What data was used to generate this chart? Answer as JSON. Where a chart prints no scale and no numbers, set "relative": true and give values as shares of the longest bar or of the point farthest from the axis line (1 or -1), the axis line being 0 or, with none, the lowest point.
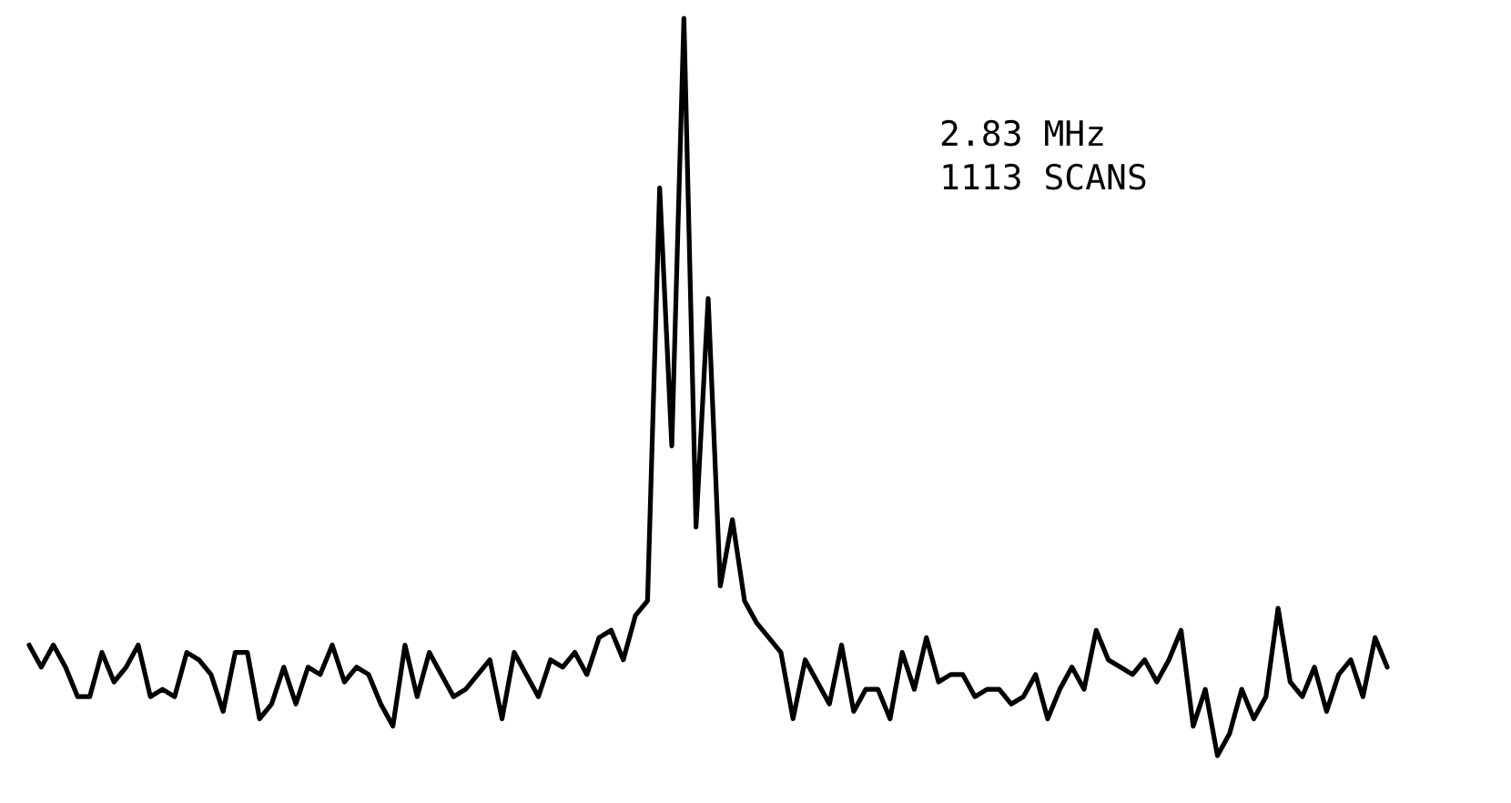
{
  "chart_data": {
    "type": "line",
    "relative": true,
    "tick_labels": false,
    "annotations": [
      "2.83 MHz",
      "1113 SCANS"
    ],
    "categories": [
      null,
      null,
      null,
      null,
      null,
      null,
      null,
      null,
      null,
      null,
      null,
      null,
      null,
      null,
      null,
      null,
      null,
      null,
      null,
      null,
      null,
      null,
      null,
      null,
      null,
      null,
      null,
      null,
      null,
      null,
      null,
      null,
      null,
      null,
      null,
      null,
      null,
      null,
      null,
      null,
      null,
      null,
      null,
      null,
      null,
      null,
      null,
      null,
      null,
      null,
      null,
      null,
      null,
      null,
      null,
      null,
      null,
      null,
      null,
      null,
      null,
      null,
      null,
      null,
      null,
      null,
      null,
      null,
      null,
      null,
      null,
      null,
      null,
      null,
      null,
      null,
      null,
      null,
      null,
      null,
      null,
      null,
      null,
      null,
      null,
      null,
      null,
      null,
      null,
      null,
      null,
      null,
      null,
      null,
      null,
      null,
      null,
      null,
      null,
      null,
      null,
      null,
      null,
      null,
      null,
      null,
      null,
      null,
      null,
      null,
      null,
      null,
      null
    ],
    "series": [
      {
        "color": "#000000",
        "values": [
          0.15,
          0.12,
          0.15,
          0.12,
          0.08,
          0.08,
          0.14,
          0.1,
          0.12,
          0.15,
          0.08,
          0.09,
          0.08,
          0.14,
          0.13,
          0.11,
          0.06,
          0.14,
          0.14,
          0.05,
          0.07,
          0.12,
          0.07,
          0.12,
          0.11,
          0.15,
          0.1,
          0.12,
          0.11,
          0.07,
          0.04,
          0.15,
          0.08,
          0.14,
          0.11,
          0.08,
          0.09,
          0.11,
          0.13,
          0.05,
          0.14,
          0.11,
          0.08,
          0.13,
          0.12,
          0.14,
          0.11,
          0.16,
          0.17,
          0.13,
          0.19,
          0.21,
          0.77,
          0.42,
          1,
          0.31,
          0.62,
          0.23,
          0.32,
          0.21,
          0.18,
          0.16,
          0.14,
          0.05,
          0.13,
          0.1,
          0.07,
          0.15,
          0.06,
          0.09,
          0.09,
          0.05,
          0.14,
          0.09,
          0.16,
          0.1,
          0.11,
          0.11,
          0.08,
          0.09,
          0.09,
          0.07,
          0.08,
          0.11,
          0.05,
          0.09,
          0.12,
          0.09,
          0.17,
          0.13,
          0.12,
          0.11,
          0.13,
          0.1,
          0.13,
          0.17,
          0.04,
          0.09,
          0,
          0.03,
          0.09,
          0.05,
          0.08,
          0.2,
          0.1,
          0.08,
          0.12,
          0.06,
          0.11,
          0.13,
          0.08,
          0.16,
          0.12
        ]
      }
    ]
  }
}
